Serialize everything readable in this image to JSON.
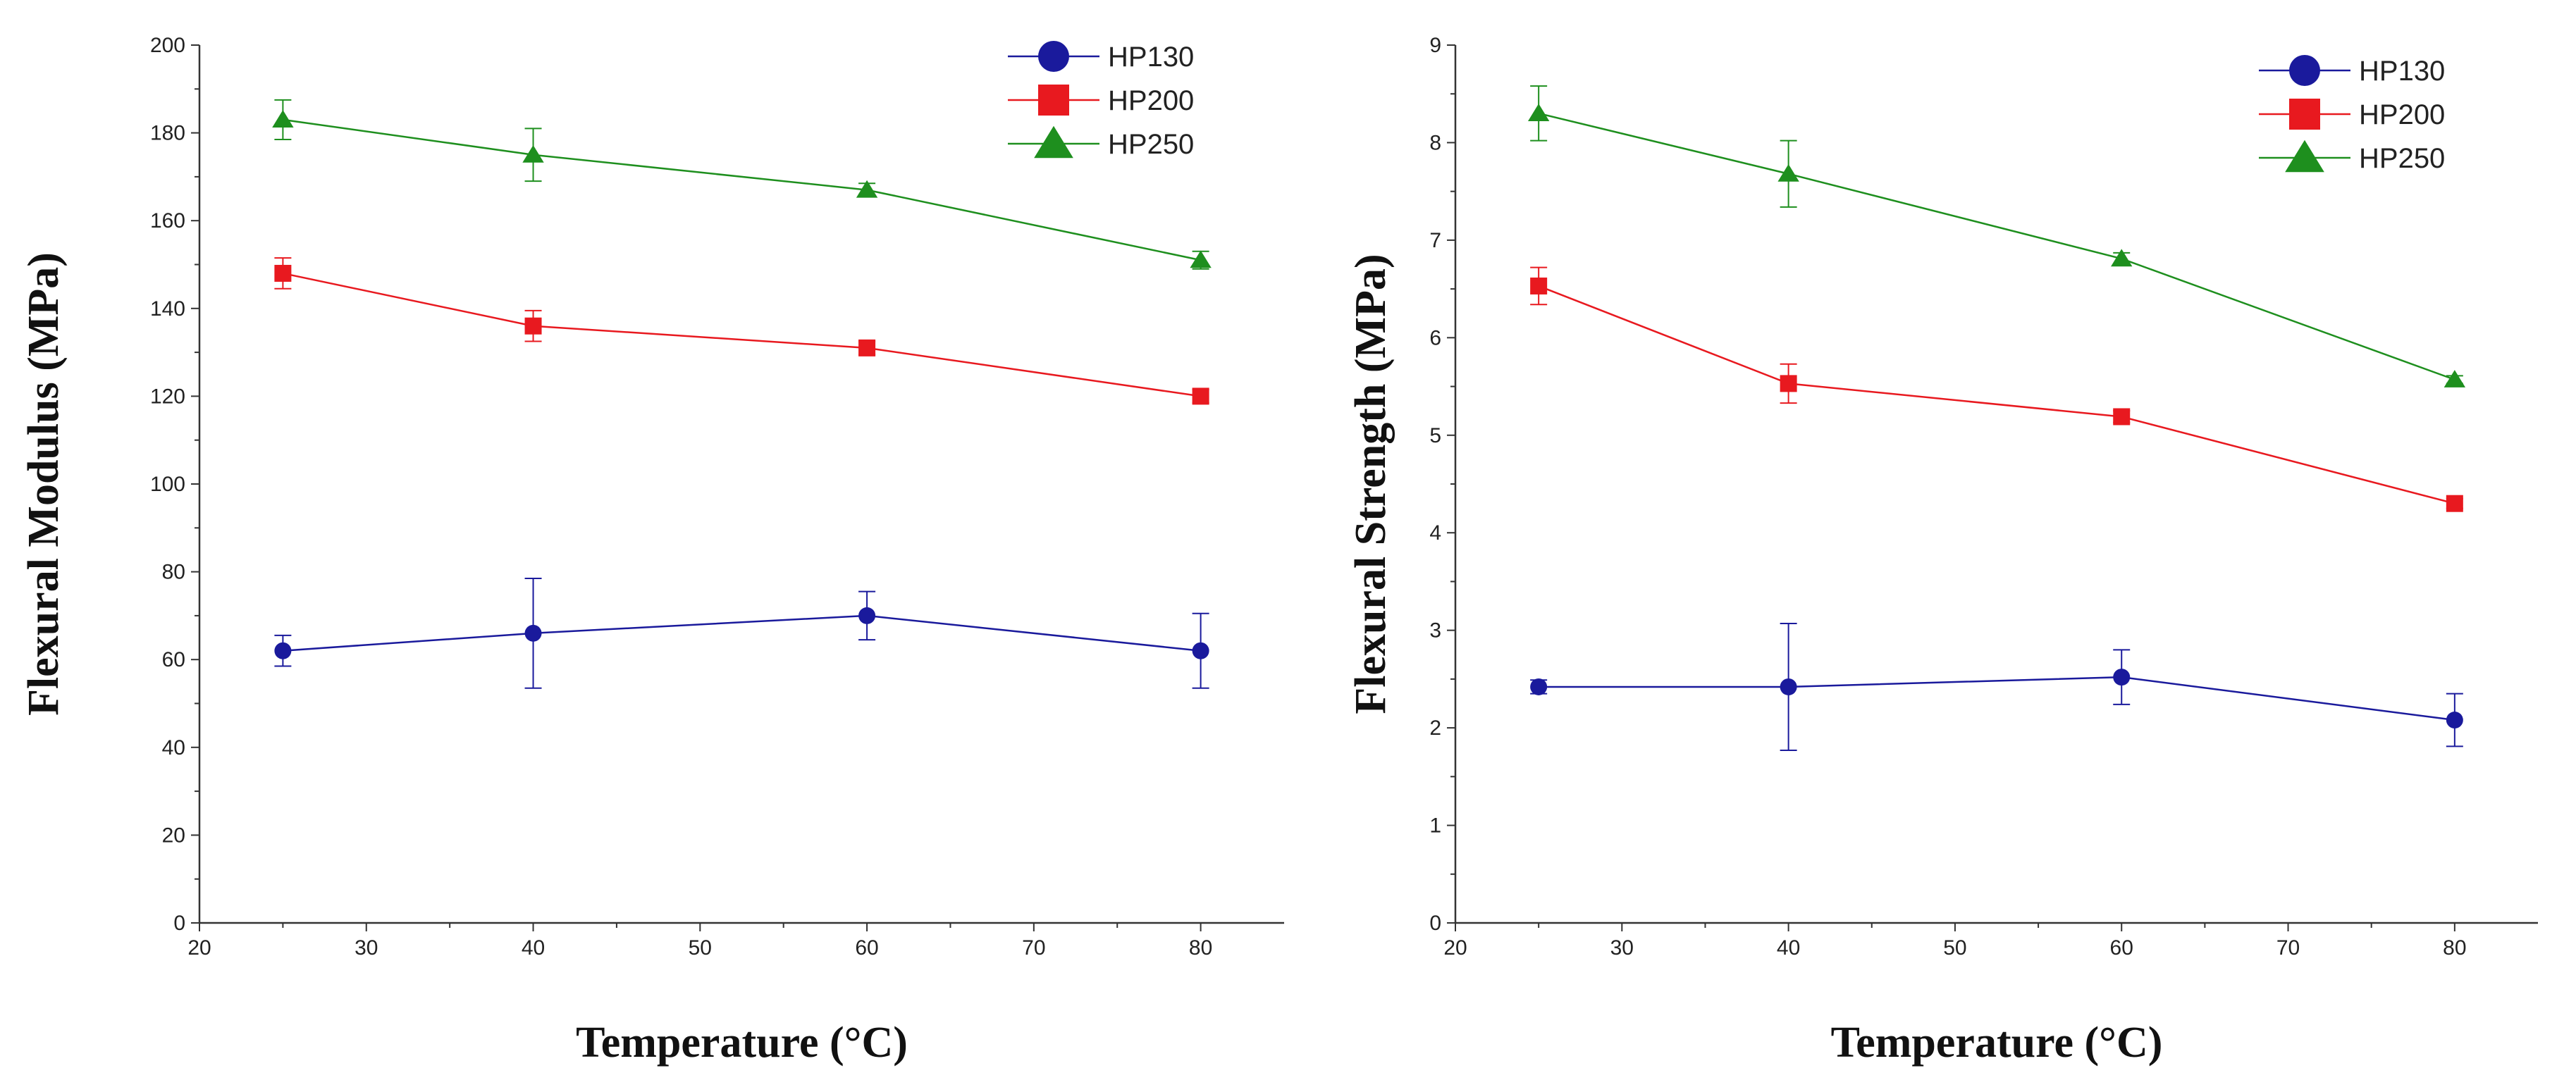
{
  "colors": {
    "HP130": "#1a1a9c",
    "HP200": "#e8191f",
    "HP250": "#1e8f1e",
    "axis": "#333333"
  },
  "chart_data": [
    {
      "type": "line",
      "xlabel": "Temperature (°C)",
      "ylabel": "Flexural Modulus (MPa)",
      "xlim": [
        20,
        85
      ],
      "ylim": [
        0,
        200
      ],
      "xticks": [
        "20",
        "30",
        "40",
        "50",
        "60",
        "70",
        "80"
      ],
      "yticks": [
        "0",
        "20",
        "40",
        "60",
        "80",
        "100",
        "120",
        "140",
        "160",
        "180",
        "200"
      ],
      "legend_position": "top-right",
      "x": [
        25,
        40,
        60,
        80
      ],
      "series": [
        {
          "name": "HP130",
          "marker": "circle",
          "values": [
            62,
            66,
            70,
            62
          ],
          "errors": [
            3.5,
            12.5,
            5.5,
            8.5
          ]
        },
        {
          "name": "HP200",
          "marker": "square",
          "values": [
            148,
            136,
            131,
            120
          ],
          "errors": [
            3.5,
            3.5,
            1.5,
            1.5
          ]
        },
        {
          "name": "HP250",
          "marker": "triangle",
          "values": [
            183,
            175,
            167,
            151
          ],
          "errors": [
            4.5,
            6,
            1.5,
            2
          ]
        }
      ]
    },
    {
      "type": "line",
      "xlabel": "Temperature (°C)",
      "ylabel": "Flexural Strength (MPa)",
      "xlim": [
        20,
        85
      ],
      "ylim": [
        0,
        9
      ],
      "xticks": [
        "20",
        "30",
        "40",
        "50",
        "60",
        "70",
        "80"
      ],
      "yticks": [
        "0",
        "1",
        "2",
        "3",
        "4",
        "5",
        "6",
        "7",
        "8",
        "9"
      ],
      "legend_position": "top-right",
      "x": [
        25,
        40,
        60,
        80
      ],
      "series": [
        {
          "name": "HP130",
          "marker": "circle",
          "values": [
            2.42,
            2.42,
            2.52,
            2.08
          ],
          "errors": [
            0.07,
            0.65,
            0.28,
            0.27
          ]
        },
        {
          "name": "HP200",
          "marker": "square",
          "values": [
            6.53,
            5.53,
            5.19,
            4.3
          ],
          "errors": [
            0.19,
            0.2,
            0.06,
            0.05
          ]
        },
        {
          "name": "HP250",
          "marker": "triangle",
          "values": [
            8.3,
            7.68,
            6.81,
            5.57
          ],
          "errors": [
            0.28,
            0.34,
            0.06,
            0.04
          ]
        }
      ]
    }
  ]
}
